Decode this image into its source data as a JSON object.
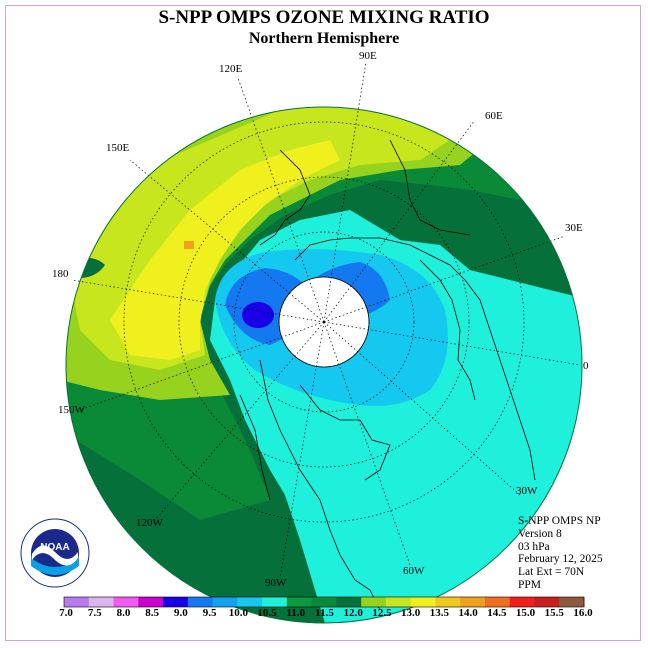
{
  "title": "S-NPP OMPS OZONE MIXING RATIO",
  "subtitle": "Northern Hemisphere",
  "longitude_labels": {
    "lon_90e": "90E",
    "lon_120e": "120E",
    "lon_60e": "60E",
    "lon_150e": "150E",
    "lon_30e": "30E",
    "lon_180": "180",
    "lon_0": "0",
    "lon_150w": "150W",
    "lon_30w": "30W",
    "lon_120w": "120W",
    "lon_60w": "60W",
    "lon_90w": "90W"
  },
  "info": {
    "instrument": "S-NPP OMPS NP",
    "version": "Version 8",
    "level": "03 hPa",
    "date": "February 12, 2025",
    "lat_ext": "Lat Ext = 70N",
    "units": "PPM"
  },
  "logo_text": "NOAA",
  "colorbar": {
    "labels": [
      "7.0",
      "7.5",
      "8.0",
      "8.5",
      "9.0",
      "9.5",
      "10.0",
      "10.5",
      "11.0",
      "11.5",
      "12.0",
      "12.5",
      "13.0",
      "13.5",
      "14.0",
      "14.5",
      "15.0",
      "15.5",
      "16.0"
    ],
    "colors": [
      "#b87cf0",
      "#dcb4f0",
      "#f05af0",
      "#cc00cc",
      "#1a00e6",
      "#1478f0",
      "#14a0f0",
      "#14c8f0",
      "#1ef0dc",
      "#0c9a3c",
      "#0a8a36",
      "#06703a",
      "#96d21e",
      "#c8e61e",
      "#f0f01e",
      "#f0c81e",
      "#f0a01e",
      "#f06e1e",
      "#f01e1e",
      "#c81e1e",
      "#8c5a3c"
    ]
  },
  "colors": {
    "bg_field": "#1ef0dc",
    "ring_dark_green": "#06703a",
    "mid_green": "#0a8a36",
    "yellow_green": "#c8e61e",
    "yellow": "#f0f01e",
    "light_blue": "#14c8f0",
    "blue": "#1478f0",
    "dark_blue": "#1a00e6"
  }
}
